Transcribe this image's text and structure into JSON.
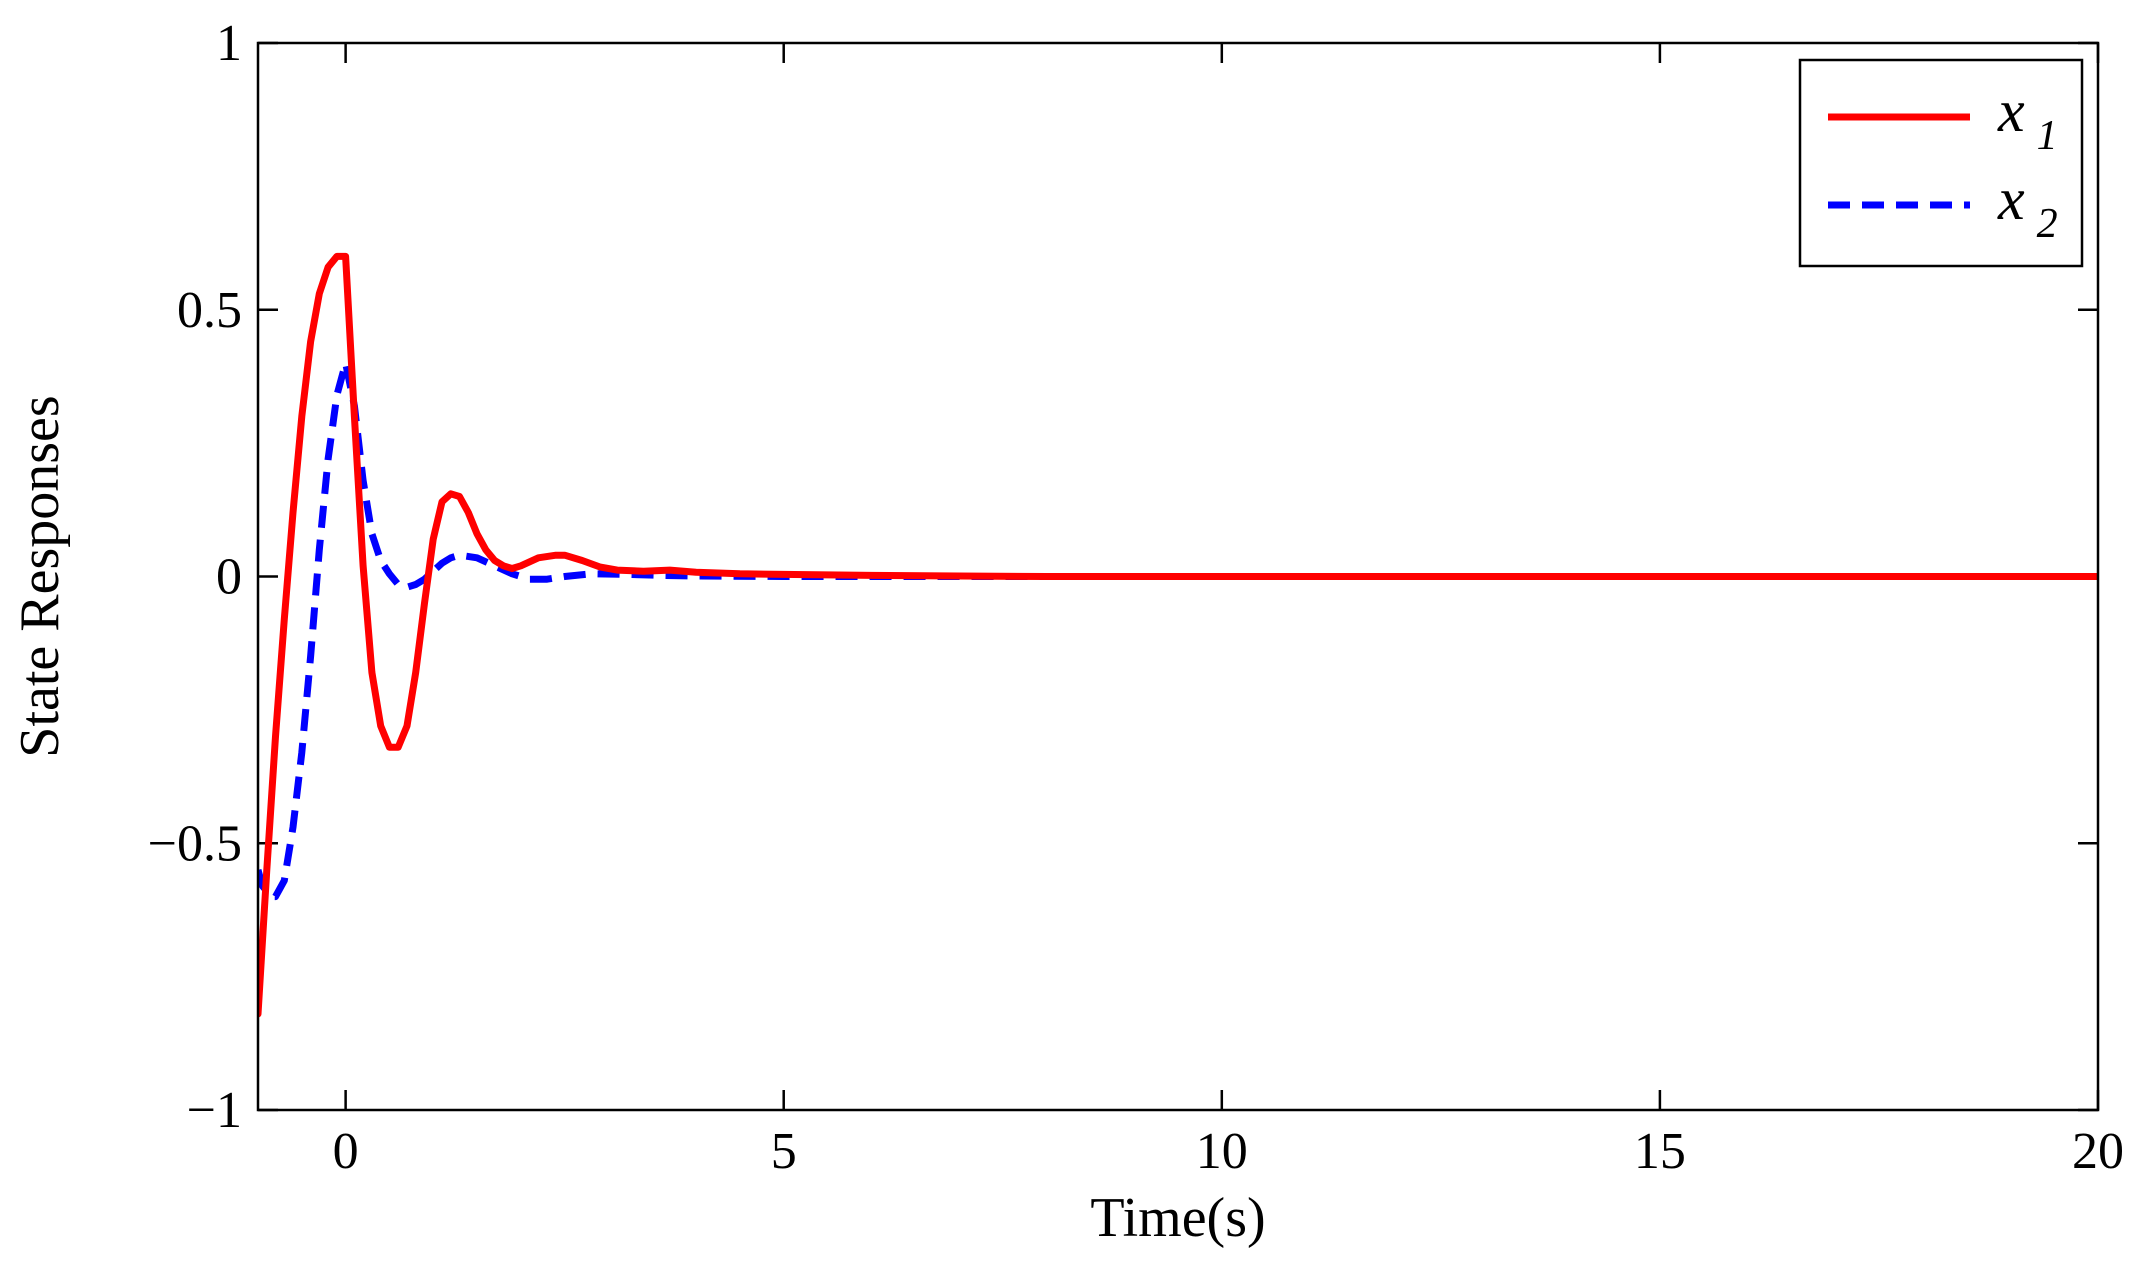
{
  "chart_data": {
    "type": "line",
    "title": "",
    "xlabel": "Time(s)",
    "ylabel": "State Responses",
    "xlim": [
      -1,
      20
    ],
    "ylim": [
      -1,
      1
    ],
    "xticks": [
      0,
      5,
      10,
      15,
      20
    ],
    "yticks": [
      -1,
      -0.5,
      0,
      0.5,
      1
    ],
    "xtick_labels": [
      "0",
      "5",
      "10",
      "15",
      "20"
    ],
    "ytick_labels": [
      "−1",
      "−0.5",
      "0",
      "0.5",
      "1"
    ],
    "grid": false,
    "legend_position": "top-right",
    "series": [
      {
        "name": "x",
        "name_subscript": "1",
        "color": "#ff0000",
        "dash": "solid",
        "x": [
          -1,
          -0.9,
          -0.8,
          -0.7,
          -0.6,
          -0.5,
          -0.4,
          -0.3,
          -0.2,
          -0.1,
          0,
          0.1,
          0.2,
          0.3,
          0.4,
          0.5,
          0.6,
          0.7,
          0.8,
          0.9,
          1.0,
          1.1,
          1.2,
          1.3,
          1.4,
          1.5,
          1.6,
          1.7,
          1.8,
          1.9,
          2.0,
          2.2,
          2.4,
          2.5,
          2.7,
          2.9,
          3.1,
          3.4,
          3.7,
          4.0,
          4.5,
          5.0,
          6.0,
          7.0,
          8.0,
          10.0,
          15.0,
          20.0
        ],
        "y": [
          -0.82,
          -0.55,
          -0.3,
          -0.08,
          0.12,
          0.3,
          0.44,
          0.53,
          0.58,
          0.6,
          0.6,
          0.3,
          0.02,
          -0.18,
          -0.28,
          -0.32,
          -0.32,
          -0.28,
          -0.18,
          -0.05,
          0.07,
          0.14,
          0.155,
          0.15,
          0.12,
          0.08,
          0.05,
          0.03,
          0.02,
          0.015,
          0.02,
          0.035,
          0.04,
          0.04,
          0.03,
          0.018,
          0.012,
          0.01,
          0.012,
          0.008,
          0.005,
          0.004,
          0.002,
          0.001,
          0,
          0,
          0,
          0
        ]
      },
      {
        "name": "x",
        "name_subscript": "2",
        "color": "#0000ff",
        "dash": "dashed",
        "x": [
          -1,
          -0.95,
          -0.9,
          -0.85,
          -0.8,
          -0.7,
          -0.6,
          -0.5,
          -0.4,
          -0.3,
          -0.2,
          -0.1,
          0,
          0.1,
          0.2,
          0.3,
          0.4,
          0.5,
          0.6,
          0.7,
          0.8,
          0.9,
          1.0,
          1.1,
          1.2,
          1.3,
          1.5,
          1.7,
          1.9,
          2.1,
          2.3,
          2.5,
          2.8,
          3.2,
          3.6,
          4.0,
          5.0,
          6.0,
          8.0,
          10.0,
          15.0,
          20.0
        ],
        "y": [
          -0.55,
          -0.58,
          -0.59,
          -0.6,
          -0.6,
          -0.57,
          -0.47,
          -0.33,
          -0.15,
          0.05,
          0.22,
          0.34,
          0.4,
          0.32,
          0.18,
          0.08,
          0.03,
          0.005,
          -0.015,
          -0.02,
          -0.015,
          -0.005,
          0.01,
          0.025,
          0.035,
          0.04,
          0.035,
          0.02,
          0.005,
          -0.005,
          -0.005,
          0.0,
          0.005,
          0.004,
          0.002,
          0.001,
          0.0,
          0.0,
          0.0,
          0.0,
          0.0,
          0.0
        ]
      }
    ]
  }
}
